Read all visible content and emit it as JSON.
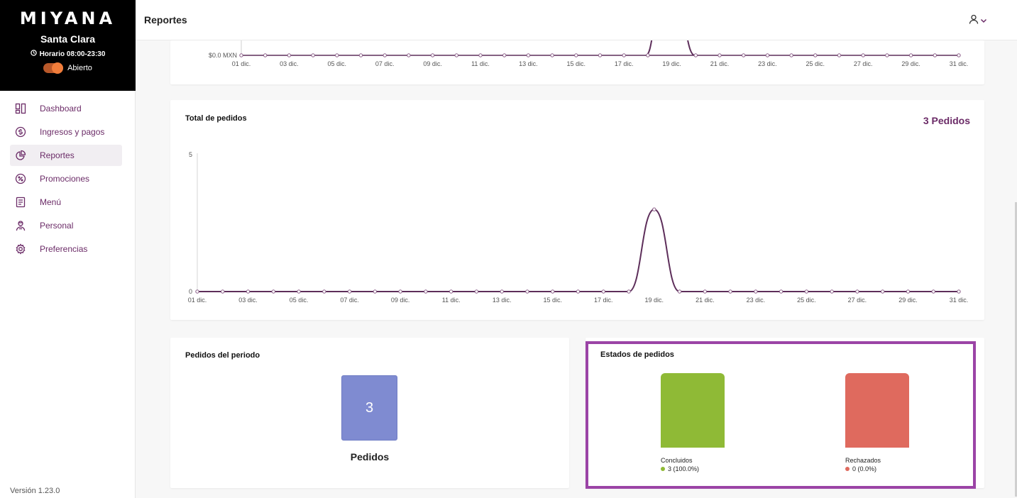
{
  "brand": {
    "logo": "MIYANA",
    "store": "Santa Clara",
    "hours": "Horario 08:00-23:30",
    "status": "Abierto"
  },
  "nav": [
    {
      "label": "Dashboard",
      "icon": "dashboard-icon",
      "active": false
    },
    {
      "label": "Ingresos y pagos",
      "icon": "dollar-icon",
      "active": false
    },
    {
      "label": "Reportes",
      "icon": "pie-chart-icon",
      "active": true
    },
    {
      "label": "Promociones",
      "icon": "percent-icon",
      "active": false
    },
    {
      "label": "Menú",
      "icon": "menu-book-icon",
      "active": false
    },
    {
      "label": "Personal",
      "icon": "person-icon",
      "active": false
    },
    {
      "label": "Preferencias",
      "icon": "gear-icon",
      "active": false
    }
  ],
  "version": "Versión 1.23.0",
  "header": {
    "title": "Reportes"
  },
  "colors": {
    "accent": "#6b2b67",
    "success": "#8fba36",
    "danger": "#df6a5e",
    "tile": "#7f8bd1",
    "highlight": "#9b44a6"
  },
  "sales_chart": {
    "y_label": "$0.0 MXN",
    "x_ticks": [
      "01 dic.",
      "03 dic.",
      "05 dic.",
      "07 dic.",
      "09 dic.",
      "11 dic.",
      "13 dic.",
      "15 dic.",
      "17 dic.",
      "19 dic.",
      "21 dic.",
      "23 dic.",
      "25 dic.",
      "27 dic.",
      "29 dic.",
      "31 dic."
    ]
  },
  "orders_card": {
    "title": "Total de pedidos",
    "total": "3 Pedidos"
  },
  "period_card": {
    "title": "Pedidos del periodo",
    "count": "3",
    "label": "Pedidos"
  },
  "states_card": {
    "title": "Estados de pedidos",
    "items": [
      {
        "name": "Concluidos",
        "value": "3 (100.0%)"
      },
      {
        "name": "Rechazados",
        "value": "0 (0.0%)"
      }
    ]
  },
  "chart_data": [
    {
      "type": "line",
      "x": [
        "01 dic.",
        "02 dic.",
        "03 dic.",
        "04 dic.",
        "05 dic.",
        "06 dic.",
        "07 dic.",
        "08 dic.",
        "09 dic.",
        "10 dic.",
        "11 dic.",
        "12 dic.",
        "13 dic.",
        "14 dic.",
        "15 dic.",
        "16 dic.",
        "17 dic.",
        "18 dic.",
        "19 dic.",
        "20 dic.",
        "21 dic.",
        "22 dic.",
        "23 dic.",
        "24 dic.",
        "25 dic.",
        "26 dic.",
        "27 dic.",
        "28 dic.",
        "29 dic.",
        "30 dic.",
        "31 dic."
      ],
      "x_ticks": [
        "01 dic.",
        "03 dic.",
        "05 dic.",
        "07 dic.",
        "09 dic.",
        "11 dic.",
        "13 dic.",
        "15 dic.",
        "17 dic.",
        "19 dic.",
        "21 dic.",
        "23 dic.",
        "25 dic.",
        "27 dic.",
        "29 dic.",
        "31 dic."
      ],
      "y_ticks": [
        "0",
        "5"
      ],
      "ylim": [
        0,
        5
      ],
      "series": [
        {
          "values": [
            0,
            0,
            0,
            0,
            0,
            0,
            0,
            0,
            0,
            0,
            0,
            0,
            0,
            0,
            0,
            0,
            0,
            0,
            3,
            0,
            0,
            0,
            0,
            0,
            0,
            0,
            0,
            0,
            0,
            0,
            0
          ]
        }
      ],
      "color": "#5d2e5a",
      "title": "Total de pedidos"
    },
    {
      "type": "bar",
      "categories": [
        "Concluidos",
        "Rechazados"
      ],
      "values": [
        3,
        0
      ],
      "labels": [
        "3 (100.0%)",
        "0 (0.0%)"
      ],
      "title": "Estados de pedidos"
    }
  ]
}
